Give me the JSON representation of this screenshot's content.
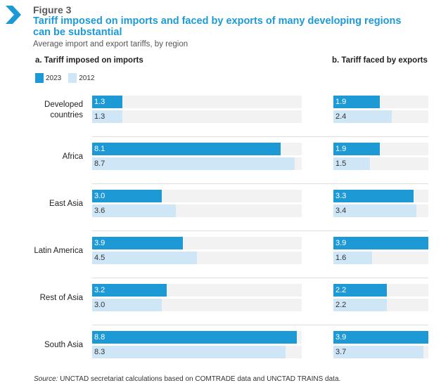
{
  "figure_label": "Figure 3",
  "title": "Tariff imposed on imports and faced by exports of many developing regions can be substantial",
  "subtitle": "Average import and export tariffs, by region",
  "legend": {
    "series_2023": "2023",
    "series_2012": "2012"
  },
  "colors": {
    "series_2023": "#1d9ad6",
    "series_2012": "#cfe6f7",
    "track": "#f2f2f2",
    "title": "#1d9ad6"
  },
  "source": {
    "label": "Source:",
    "text": " UNCTAD secretariat calculations based on COMTRADE data and UNCTAD TRAINS data."
  },
  "chart_data": [
    {
      "type": "bar",
      "orientation": "horizontal",
      "title": "a. Tariff imposed on imports",
      "categories": [
        "Developed countries",
        "Africa",
        "East Asia",
        "Latin America",
        "Rest of Asia",
        "South Asia"
      ],
      "series": [
        {
          "name": "2023",
          "values": [
            1.3,
            8.1,
            3.0,
            3.9,
            3.2,
            8.8
          ]
        },
        {
          "name": "2012",
          "values": [
            1.3,
            8.7,
            3.6,
            4.5,
            3.0,
            8.3
          ]
        }
      ],
      "xlim": [
        0,
        9.0
      ]
    },
    {
      "type": "bar",
      "orientation": "horizontal",
      "title": "b. Tariff faced by exports",
      "categories": [
        "Developed countries",
        "Africa",
        "East Asia",
        "Latin America",
        "Rest of Asia",
        "South Asia"
      ],
      "series": [
        {
          "name": "2023",
          "values": [
            1.9,
            1.9,
            3.3,
            3.9,
            2.2,
            3.9
          ]
        },
        {
          "name": "2012",
          "values": [
            2.4,
            1.5,
            3.4,
            1.6,
            2.2,
            3.7
          ]
        }
      ],
      "xlim": [
        0,
        3.9
      ]
    }
  ]
}
